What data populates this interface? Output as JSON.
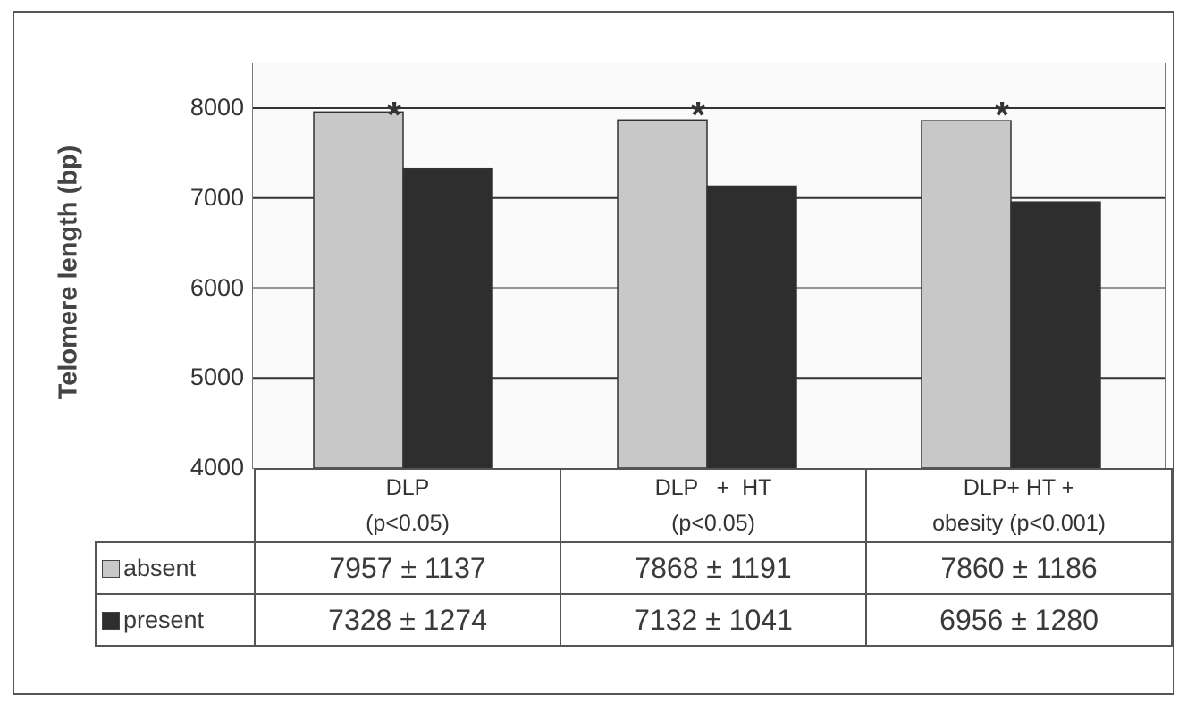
{
  "chart_data": {
    "type": "bar",
    "ylabel": "Telomere length (bp)",
    "ylim": [
      4000,
      8000
    ],
    "yticks": [
      4000,
      5000,
      6000,
      7000,
      8000
    ],
    "grid": true,
    "categories": [
      {
        "line1": "DLP",
        "line2": "(p<0.05)"
      },
      {
        "line1": "DLP   +  HT",
        "line2": "(p<0.05)"
      },
      {
        "line1": "DLP+ HT +",
        "line2": "obesity (p<0.001)"
      }
    ],
    "significance_marker": "*",
    "series": [
      {
        "name": "absent",
        "color": "#c8c8c8",
        "values": [
          7957,
          7868,
          7860
        ],
        "sd": [
          1137,
          1191,
          1186
        ]
      },
      {
        "name": "present",
        "color": "#2e2e2e",
        "values": [
          7328,
          7132,
          6956
        ],
        "sd": [
          1274,
          1041,
          1280
        ]
      }
    ],
    "table": {
      "rows": [
        {
          "label": "absent",
          "cells": [
            "7957 ± 1137",
            "7868 ± 1191",
            "7860 ± 1186"
          ]
        },
        {
          "label": "present",
          "cells": [
            "7328 ± 1274",
            "7132 ± 1041",
            "6956 ± 1280"
          ]
        }
      ]
    }
  }
}
